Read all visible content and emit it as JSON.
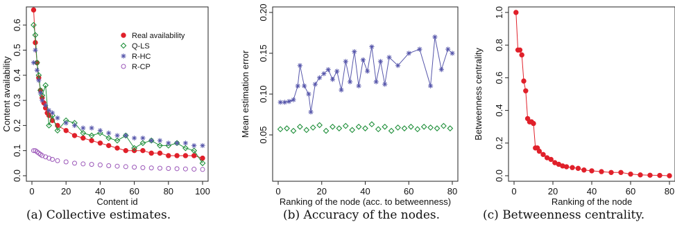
{
  "chart_data": [
    {
      "type": "scatter",
      "caption": "(a) Collective estimates.",
      "xlabel": "Content id",
      "ylabel": "Content availability",
      "xlim": [
        0,
        100
      ],
      "ylim": [
        0,
        0.65
      ],
      "xticks": [
        "0",
        "20",
        "40",
        "60",
        "80",
        "100"
      ],
      "yticks": [
        "0.0",
        "0.1",
        "0.2",
        "0.3",
        "0.4",
        "0.5",
        "0.6"
      ],
      "legend_position": "top-right",
      "grid": false,
      "series": [
        {
          "name": "Real availability",
          "color": "#e0202a",
          "marker": "filled-circle",
          "x": [
            1,
            2,
            3,
            4,
            5,
            6,
            7,
            8,
            9,
            10,
            12,
            15,
            20,
            25,
            30,
            35,
            40,
            45,
            50,
            55,
            60,
            65,
            70,
            75,
            80,
            85,
            90,
            95,
            100
          ],
          "y": [
            0.66,
            0.53,
            0.45,
            0.39,
            0.34,
            0.31,
            0.29,
            0.27,
            0.25,
            0.24,
            0.22,
            0.2,
            0.18,
            0.16,
            0.15,
            0.14,
            0.13,
            0.12,
            0.11,
            0.1,
            0.1,
            0.1,
            0.09,
            0.09,
            0.08,
            0.08,
            0.08,
            0.08,
            0.07
          ]
        },
        {
          "name": "Q-LS",
          "color": "#1f8f3a",
          "marker": "diamond",
          "x": [
            1,
            2,
            3,
            4,
            5,
            6,
            8,
            10,
            12,
            15,
            20,
            25,
            30,
            35,
            40,
            45,
            50,
            55,
            60,
            65,
            70,
            75,
            80,
            85,
            90,
            95,
            100
          ],
          "y": [
            0.6,
            0.56,
            0.45,
            0.4,
            0.34,
            0.32,
            0.36,
            0.2,
            0.24,
            0.18,
            0.22,
            0.21,
            0.17,
            0.16,
            0.17,
            0.15,
            0.14,
            0.16,
            0.11,
            0.13,
            0.14,
            0.12,
            0.12,
            0.13,
            0.11,
            0.1,
            0.05
          ]
        },
        {
          "name": "R-HC",
          "color": "#5555aa",
          "marker": "asterisk",
          "x": [
            1,
            2,
            3,
            4,
            5,
            6,
            8,
            10,
            12,
            15,
            20,
            25,
            30,
            35,
            40,
            45,
            50,
            55,
            60,
            65,
            70,
            75,
            80,
            85,
            90,
            95,
            100
          ],
          "y": [
            0.45,
            0.5,
            0.42,
            0.38,
            0.33,
            0.3,
            0.28,
            0.26,
            0.25,
            0.23,
            0.21,
            0.2,
            0.19,
            0.19,
            0.18,
            0.17,
            0.16,
            0.16,
            0.15,
            0.15,
            0.14,
            0.14,
            0.13,
            0.13,
            0.13,
            0.12,
            0.12
          ]
        },
        {
          "name": "R-CP",
          "color": "#9a55b8",
          "marker": "open-circle",
          "x": [
            1,
            2,
            3,
            4,
            5,
            6,
            8,
            10,
            12,
            15,
            20,
            25,
            30,
            35,
            40,
            45,
            50,
            55,
            60,
            65,
            70,
            75,
            80,
            85,
            90,
            95,
            100
          ],
          "y": [
            0.1,
            0.1,
            0.095,
            0.09,
            0.085,
            0.08,
            0.075,
            0.07,
            0.065,
            0.06,
            0.055,
            0.05,
            0.047,
            0.045,
            0.043,
            0.04,
            0.038,
            0.036,
            0.034,
            0.032,
            0.031,
            0.03,
            0.029,
            0.028,
            0.027,
            0.026,
            0.025
          ]
        }
      ]
    },
    {
      "type": "line",
      "caption": "(b) Accuracy of the nodes.",
      "xlabel": "Ranking of the node (acc. to betweenness)",
      "ylabel": "Mean estimation error",
      "xlim": [
        0,
        80
      ],
      "ylim": [
        0.0,
        0.2
      ],
      "xticks": [
        "0",
        "20",
        "40",
        "60",
        "80"
      ],
      "yticks": [
        "0.05",
        "0.10",
        "0.15",
        "0.20"
      ],
      "grid": false,
      "series": [
        {
          "color": "#5555aa",
          "marker": "asterisk",
          "x": [
            1,
            3,
            5,
            7,
            9,
            10,
            12,
            14,
            15,
            17,
            19,
            21,
            23,
            25,
            27,
            29,
            31,
            33,
            35,
            37,
            39,
            41,
            43,
            45,
            47,
            49,
            51,
            55,
            60,
            65,
            70,
            72,
            75,
            78,
            80
          ],
          "y": [
            0.09,
            0.09,
            0.091,
            0.093,
            0.11,
            0.135,
            0.11,
            0.1,
            0.078,
            0.112,
            0.12,
            0.125,
            0.13,
            0.118,
            0.128,
            0.105,
            0.14,
            0.115,
            0.152,
            0.11,
            0.142,
            0.128,
            0.158,
            0.115,
            0.14,
            0.112,
            0.145,
            0.135,
            0.15,
            0.155,
            0.11,
            0.17,
            0.13,
            0.155,
            0.15
          ]
        },
        {
          "color": "#1f8f3a",
          "marker": "diamond",
          "x": [
            1,
            4,
            7,
            10,
            13,
            16,
            19,
            22,
            25,
            28,
            31,
            34,
            37,
            40,
            43,
            46,
            49,
            52,
            55,
            58,
            61,
            64,
            67,
            70,
            73,
            76,
            79
          ],
          "y": [
            0.057,
            0.058,
            0.055,
            0.06,
            0.056,
            0.059,
            0.062,
            0.055,
            0.06,
            0.058,
            0.061,
            0.056,
            0.06,
            0.058,
            0.063,
            0.057,
            0.06,
            0.055,
            0.059,
            0.058,
            0.06,
            0.057,
            0.06,
            0.059,
            0.058,
            0.061,
            0.058
          ]
        }
      ]
    },
    {
      "type": "line",
      "caption": "(c) Betweenness centrality.",
      "xlabel": "Ranking of the node",
      "ylabel": "Betweenness centrality",
      "xlim": [
        0,
        80
      ],
      "ylim": [
        0.0,
        1.0
      ],
      "xticks": [
        "0",
        "20",
        "40",
        "60",
        "80"
      ],
      "yticks": [
        "0.0",
        "0.2",
        "0.4",
        "0.6",
        "0.8",
        "1.0"
      ],
      "grid": false,
      "series": [
        {
          "color": "#e0202a",
          "marker": "filled-circle",
          "x": [
            1,
            2,
            3,
            4,
            5,
            6,
            7,
            8,
            9,
            10,
            11,
            12,
            13,
            15,
            17,
            19,
            21,
            23,
            25,
            27,
            30,
            33,
            36,
            40,
            45,
            50,
            55,
            60,
            65,
            70,
            75,
            80
          ],
          "y": [
            1.0,
            0.77,
            0.77,
            0.74,
            0.58,
            0.52,
            0.35,
            0.33,
            0.33,
            0.32,
            0.17,
            0.17,
            0.15,
            0.13,
            0.11,
            0.1,
            0.08,
            0.07,
            0.06,
            0.055,
            0.05,
            0.045,
            0.035,
            0.03,
            0.025,
            0.02,
            0.02,
            0.01,
            0.005,
            0.003,
            0.002,
            0.0
          ]
        }
      ]
    }
  ]
}
